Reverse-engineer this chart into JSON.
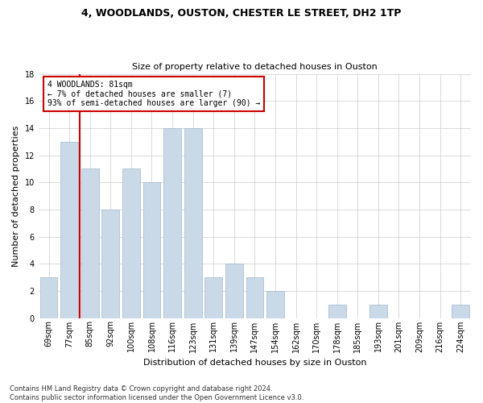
{
  "title1": "4, WOODLANDS, OUSTON, CHESTER LE STREET, DH2 1TP",
  "title2": "Size of property relative to detached houses in Ouston",
  "xlabel": "Distribution of detached houses by size in Ouston",
  "ylabel": "Number of detached properties",
  "categories": [
    "69sqm",
    "77sqm",
    "85sqm",
    "92sqm",
    "100sqm",
    "108sqm",
    "116sqm",
    "123sqm",
    "131sqm",
    "139sqm",
    "147sqm",
    "154sqm",
    "162sqm",
    "170sqm",
    "178sqm",
    "185sqm",
    "193sqm",
    "201sqm",
    "209sqm",
    "216sqm",
    "224sqm"
  ],
  "values": [
    3,
    13,
    11,
    8,
    11,
    10,
    14,
    14,
    3,
    4,
    3,
    2,
    0,
    0,
    1,
    0,
    1,
    0,
    0,
    0,
    1
  ],
  "bar_color": "#c9d9e8",
  "bar_edgecolor": "#a0b8cc",
  "vline_x": 1.5,
  "vline_color": "#cc0000",
  "annotation_text": "4 WOODLANDS: 81sqm\n← 7% of detached houses are smaller (7)\n93% of semi-detached houses are larger (90) →",
  "annotation_box_color": "#cc0000",
  "annotation_text_color": "#000000",
  "ylim": [
    0,
    18
  ],
  "yticks": [
    0,
    2,
    4,
    6,
    8,
    10,
    12,
    14,
    16,
    18
  ],
  "footer": "Contains HM Land Registry data © Crown copyright and database right 2024.\nContains public sector information licensed under the Open Government Licence v3.0.",
  "background_color": "#ffffff",
  "grid_color": "#cccccc",
  "title1_fontsize": 9,
  "title2_fontsize": 8,
  "ylabel_fontsize": 8,
  "xlabel_fontsize": 8,
  "tick_fontsize": 7,
  "annotation_fontsize": 7,
  "footer_fontsize": 6
}
